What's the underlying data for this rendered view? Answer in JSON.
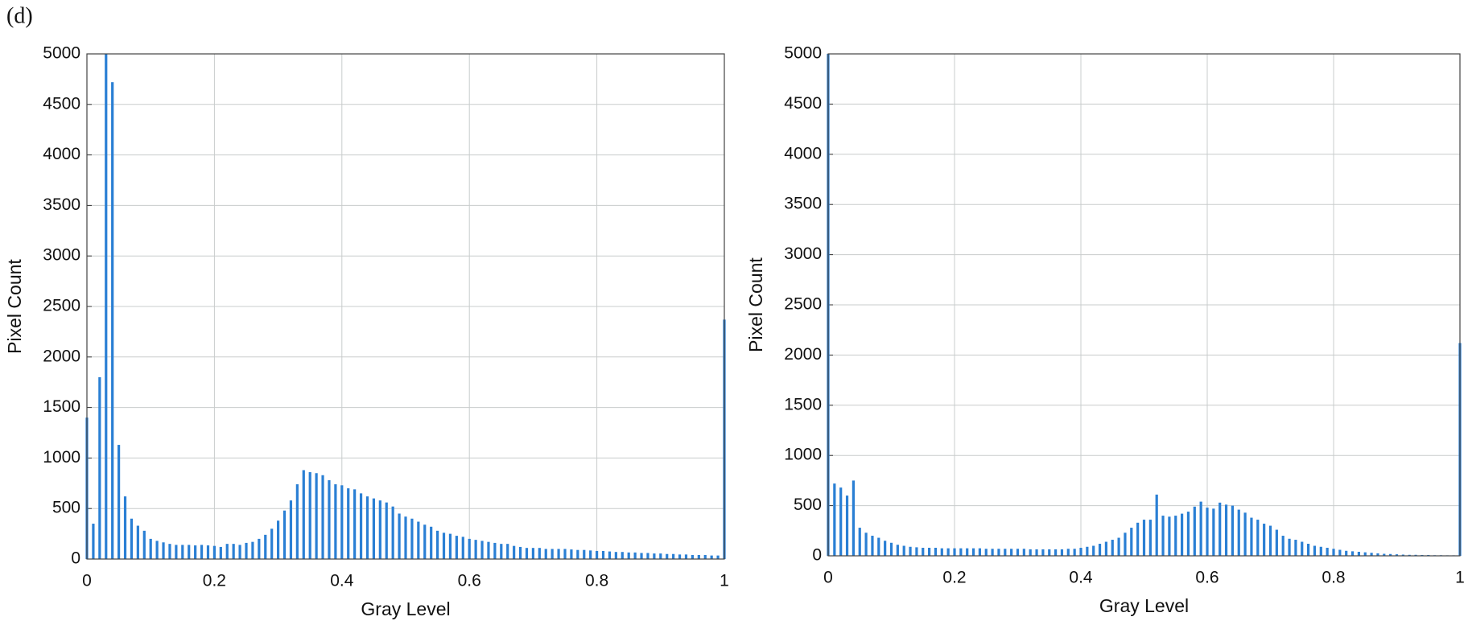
{
  "panel_label": "(d)",
  "chart_data": [
    {
      "type": "bar",
      "x_label": "Gray Level",
      "y_label": "Pixel Count",
      "color": "#2a7fd4",
      "grid": true,
      "xlim": [
        0,
        1
      ],
      "xticks": [
        0,
        0.2,
        0.4,
        0.6,
        0.8,
        1
      ],
      "ylim": [
        0,
        5000
      ],
      "yticks": [
        0,
        500,
        1000,
        1500,
        2000,
        2500,
        3000,
        3500,
        4000,
        4500,
        5000
      ],
      "x": [
        0,
        0.01,
        0.02,
        0.03,
        0.04,
        0.05,
        0.06,
        0.07,
        0.08,
        0.09,
        0.1,
        0.11,
        0.12,
        0.13,
        0.14,
        0.15,
        0.16,
        0.17,
        0.18,
        0.19,
        0.2,
        0.21,
        0.22,
        0.23,
        0.24,
        0.25,
        0.26,
        0.27,
        0.28,
        0.29,
        0.3,
        0.31,
        0.32,
        0.33,
        0.34,
        0.35,
        0.36,
        0.37,
        0.38,
        0.39,
        0.4,
        0.41,
        0.42,
        0.43,
        0.44,
        0.45,
        0.46,
        0.47,
        0.48,
        0.49,
        0.5,
        0.51,
        0.52,
        0.53,
        0.54,
        0.55,
        0.56,
        0.57,
        0.58,
        0.59,
        0.6,
        0.61,
        0.62,
        0.63,
        0.64,
        0.65,
        0.66,
        0.67,
        0.68,
        0.69,
        0.7,
        0.71,
        0.72,
        0.73,
        0.74,
        0.75,
        0.76,
        0.77,
        0.78,
        0.79,
        0.8,
        0.81,
        0.82,
        0.83,
        0.84,
        0.85,
        0.86,
        0.87,
        0.88,
        0.89,
        0.9,
        0.91,
        0.92,
        0.93,
        0.94,
        0.95,
        0.96,
        0.97,
        0.98,
        0.99,
        1
      ],
      "values": [
        1400,
        350,
        1800,
        5000,
        4720,
        1130,
        620,
        400,
        330,
        280,
        200,
        180,
        165,
        150,
        140,
        140,
        140,
        135,
        140,
        135,
        130,
        120,
        150,
        150,
        140,
        160,
        170,
        200,
        240,
        300,
        380,
        480,
        580,
        740,
        880,
        860,
        850,
        830,
        780,
        740,
        730,
        700,
        690,
        650,
        620,
        600,
        580,
        560,
        520,
        450,
        420,
        400,
        370,
        340,
        320,
        280,
        260,
        250,
        230,
        220,
        200,
        190,
        180,
        170,
        160,
        150,
        150,
        130,
        120,
        110,
        110,
        110,
        100,
        100,
        100,
        100,
        95,
        90,
        90,
        85,
        80,
        80,
        75,
        70,
        70,
        65,
        65,
        60,
        60,
        55,
        55,
        50,
        50,
        45,
        45,
        40,
        40,
        40,
        35,
        35,
        2370
      ]
    },
    {
      "type": "bar",
      "x_label": "Gray Level",
      "y_label": "Pixel Count",
      "color": "#2a7fd4",
      "grid": true,
      "xlim": [
        0,
        1
      ],
      "xticks": [
        0,
        0.2,
        0.4,
        0.6,
        0.8,
        1
      ],
      "ylim": [
        0,
        5000
      ],
      "yticks": [
        0,
        500,
        1000,
        1500,
        2000,
        2500,
        3000,
        3500,
        4000,
        4500,
        5000
      ],
      "x": [
        0,
        0.01,
        0.02,
        0.03,
        0.04,
        0.05,
        0.06,
        0.07,
        0.08,
        0.09,
        0.1,
        0.11,
        0.12,
        0.13,
        0.14,
        0.15,
        0.16,
        0.17,
        0.18,
        0.19,
        0.2,
        0.21,
        0.22,
        0.23,
        0.24,
        0.25,
        0.26,
        0.27,
        0.28,
        0.29,
        0.3,
        0.31,
        0.32,
        0.33,
        0.34,
        0.35,
        0.36,
        0.37,
        0.38,
        0.39,
        0.4,
        0.41,
        0.42,
        0.43,
        0.44,
        0.45,
        0.46,
        0.47,
        0.48,
        0.49,
        0.5,
        0.51,
        0.52,
        0.53,
        0.54,
        0.55,
        0.56,
        0.57,
        0.58,
        0.59,
        0.6,
        0.61,
        0.62,
        0.63,
        0.64,
        0.65,
        0.66,
        0.67,
        0.68,
        0.69,
        0.7,
        0.71,
        0.72,
        0.73,
        0.74,
        0.75,
        0.76,
        0.77,
        0.78,
        0.79,
        0.8,
        0.81,
        0.82,
        0.83,
        0.84,
        0.85,
        0.86,
        0.87,
        0.88,
        0.89,
        0.9,
        0.91,
        0.92,
        0.93,
        0.94,
        0.95,
        0.96,
        0.97,
        0.98,
        0.99,
        1
      ],
      "values": [
        5000,
        720,
        680,
        600,
        750,
        280,
        230,
        200,
        180,
        150,
        130,
        110,
        100,
        90,
        85,
        80,
        80,
        80,
        75,
        75,
        75,
        75,
        75,
        75,
        75,
        70,
        70,
        70,
        70,
        70,
        70,
        70,
        65,
        65,
        65,
        65,
        65,
        65,
        70,
        70,
        80,
        90,
        100,
        120,
        140,
        160,
        180,
        230,
        280,
        330,
        360,
        360,
        610,
        400,
        390,
        400,
        420,
        440,
        490,
        540,
        480,
        470,
        530,
        510,
        500,
        460,
        430,
        380,
        360,
        320,
        300,
        260,
        200,
        170,
        160,
        140,
        120,
        100,
        90,
        80,
        70,
        60,
        50,
        45,
        40,
        35,
        30,
        25,
        20,
        18,
        15,
        12,
        10,
        10,
        8,
        8,
        6,
        6,
        5,
        5,
        2120
      ]
    }
  ]
}
